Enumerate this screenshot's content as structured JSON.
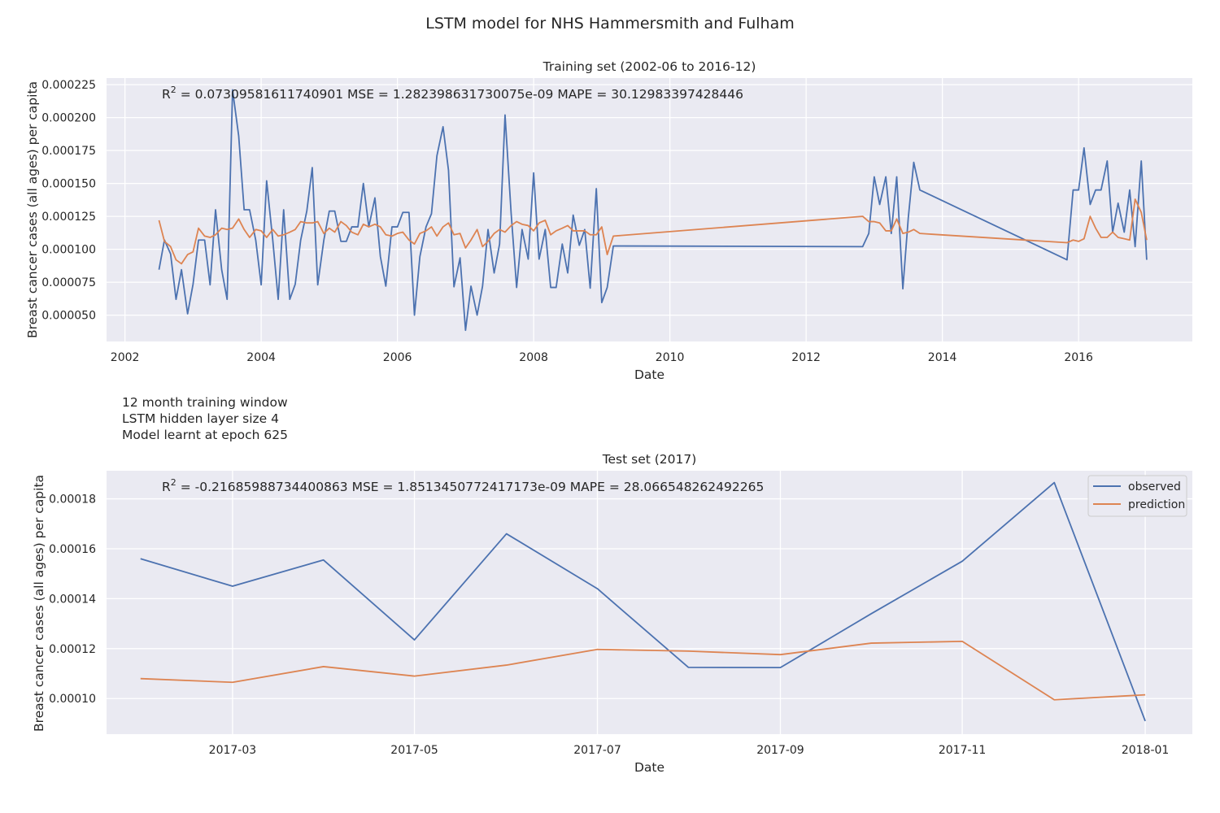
{
  "chart_data": {
    "type": "line",
    "suptitle": "LSTM model for NHS Hammersmith and Fulham",
    "notes": [
      "12 month training window",
      "LSTM hidden layer size 4",
      "Model learnt at epoch 625"
    ],
    "colors": {
      "observed": "#4c72b0",
      "prediction": "#dd8452",
      "background": "#eaeaf2",
      "grid": "#ffffff"
    },
    "panels": [
      {
        "title": "Training set (2002-06 to 2016-12)",
        "xlabel": "Date",
        "ylabel": "Breast cancer cases (all ages) per capita",
        "stats_prefix": "R",
        "stats_sup": "2",
        "stats_text": " = 0.07309581611740901  MSE = 1.282398631730075e-09  MAPE = 30.12983397428446",
        "xlim": [
          2001.73,
          2017.67
        ],
        "ylim": [
          3e-05,
          0.00023
        ],
        "xticks": [
          2002,
          2004,
          2006,
          2008,
          2010,
          2012,
          2014,
          2016
        ],
        "xtick_labels": [
          "2002",
          "2004",
          "2006",
          "2008",
          "2010",
          "2012",
          "2014",
          "2016"
        ],
        "yticks": [
          5e-05,
          7.5e-05,
          0.0001,
          0.000125,
          0.00015,
          0.000175,
          0.0002,
          0.000225
        ],
        "ytick_labels": [
          "0.000050",
          "0.000075",
          "0.000100",
          "0.000125",
          "0.000150",
          "0.000175",
          "0.000200",
          "0.000225"
        ],
        "legend": null,
        "series": [
          {
            "name": "observed",
            "x": [
              2002.5,
              2002.58,
              2002.67,
              2002.75,
              2002.83,
              2002.92,
              2003.0,
              2003.08,
              2003.17,
              2003.25,
              2003.33,
              2003.42,
              2003.5,
              2003.58,
              2003.67,
              2003.75,
              2003.83,
              2003.92,
              2004.0,
              2004.08,
              2004.17,
              2004.25,
              2004.33,
              2004.42,
              2004.5,
              2004.58,
              2004.67,
              2004.75,
              2004.83,
              2004.92,
              2005.0,
              2005.08,
              2005.17,
              2005.25,
              2005.33,
              2005.42,
              2005.5,
              2005.58,
              2005.67,
              2005.75,
              2005.83,
              2005.92,
              2006.0,
              2006.08,
              2006.17,
              2006.25,
              2006.33,
              2006.42,
              2006.5,
              2006.58,
              2006.67,
              2006.75,
              2006.83,
              2006.92,
              2007.0,
              2007.08,
              2007.17,
              2007.25,
              2007.33,
              2007.42,
              2007.5,
              2007.58,
              2007.67,
              2007.75,
              2007.83,
              2007.92,
              2008.0,
              2008.08,
              2008.17,
              2008.25,
              2008.33,
              2008.42,
              2008.5,
              2008.58,
              2008.67,
              2008.75,
              2008.83,
              2008.92,
              2009.0,
              2009.08,
              2009.17,
              2012.83,
              2012.92,
              2013.0,
              2013.08,
              2013.17,
              2013.25,
              2013.33,
              2013.42,
              2013.5,
              2013.58,
              2013.67,
              2015.83,
              2015.92,
              2016.0,
              2016.08,
              2016.17,
              2016.25,
              2016.33,
              2016.42,
              2016.5,
              2016.58,
              2016.67,
              2016.75,
              2016.83,
              2016.92,
              2017.0
            ],
            "y": [
              8.45e-05,
              0.000107,
              9.65e-05,
              6.2e-05,
              8.45e-05,
              5.1e-05,
              7.35e-05,
              0.000107,
              0.000107,
              7.3e-05,
              0.00013,
              8.45e-05,
              6.2e-05,
              0.000221,
              0.000186,
              0.00013,
              0.00013,
              0.000107,
              7.3e-05,
              0.000152,
              0.000107,
              6.2e-05,
              0.00013,
              6.2e-05,
              7.35e-05,
              0.000107,
              0.000129,
              0.000162,
              7.3e-05,
              0.000107,
              0.000129,
              0.000129,
              0.000106,
              0.000106,
              0.000117,
              0.000117,
              0.00015,
              0.000117,
              0.000139,
              9.45e-05,
              7.2e-05,
              0.000117,
              0.000117,
              0.000128,
              0.000128,
              5e-05,
              9.45e-05,
              0.000117,
              0.000127,
              0.000171,
              0.000193,
              0.00016,
              7.15e-05,
              9.35e-05,
              3.85e-05,
              7.2e-05,
              5e-05,
              7.2e-05,
              0.000115,
              8.2e-05,
              0.000104,
              0.000202,
              0.000127,
              7.1e-05,
              0.000115,
              9.25e-05,
              0.000158,
              9.25e-05,
              0.000115,
              7.1e-05,
              7.1e-05,
              0.000104,
              8.2e-05,
              0.000126,
              0.000103,
              0.000115,
              7.05e-05,
              0.000146,
              5.95e-05,
              7.1e-05,
              0.0001025,
              0.000102,
              0.000112,
              0.000155,
              0.000134,
              0.000155,
              0.000112,
              0.000155,
              7e-05,
              0.000124,
              0.000166,
              0.000145,
              9.2e-05,
              0.000145,
              0.000145,
              0.000177,
              0.000134,
              0.000145,
              0.000145,
              0.000167,
              0.000113,
              0.000135,
              0.000113,
              0.000145,
              0.000102,
              0.000167,
              9.2e-05
            ]
          },
          {
            "name": "prediction",
            "x": [
              2002.5,
              2002.58,
              2002.67,
              2002.75,
              2002.83,
              2002.92,
              2003.0,
              2003.08,
              2003.17,
              2003.25,
              2003.33,
              2003.42,
              2003.5,
              2003.58,
              2003.67,
              2003.75,
              2003.83,
              2003.92,
              2004.0,
              2004.08,
              2004.17,
              2004.25,
              2004.33,
              2004.42,
              2004.5,
              2004.58,
              2004.67,
              2004.75,
              2004.83,
              2004.92,
              2005.0,
              2005.08,
              2005.17,
              2005.25,
              2005.33,
              2005.42,
              2005.5,
              2005.58,
              2005.67,
              2005.75,
              2005.83,
              2005.92,
              2006.0,
              2006.08,
              2006.17,
              2006.25,
              2006.33,
              2006.42,
              2006.5,
              2006.58,
              2006.67,
              2006.75,
              2006.83,
              2006.92,
              2007.0,
              2007.08,
              2007.17,
              2007.25,
              2007.33,
              2007.42,
              2007.5,
              2007.58,
              2007.67,
              2007.75,
              2007.83,
              2007.92,
              2008.0,
              2008.08,
              2008.17,
              2008.25,
              2008.33,
              2008.42,
              2008.5,
              2008.58,
              2008.67,
              2008.75,
              2008.83,
              2008.92,
              2009.0,
              2009.08,
              2009.17,
              2012.83,
              2012.92,
              2013.0,
              2013.08,
              2013.17,
              2013.25,
              2013.33,
              2013.42,
              2013.5,
              2013.58,
              2013.67,
              2015.83,
              2015.92,
              2016.0,
              2016.08,
              2016.17,
              2016.25,
              2016.33,
              2016.42,
              2016.5,
              2016.58,
              2016.67,
              2016.75,
              2016.83,
              2016.92,
              2017.0
            ],
            "y": [
              0.000122,
              0.000106,
              0.000102,
              9.2e-05,
              8.9e-05,
              9.6e-05,
              9.8e-05,
              0.000116,
              0.00011,
              0.000109,
              0.000111,
              0.000116,
              0.000115,
              0.000116,
              0.000123,
              0.000115,
              0.000109,
              0.000115,
              0.000114,
              0.000109,
              0.000115,
              0.00011,
              0.000111,
              0.000113,
              0.000115,
              0.000121,
              0.00012,
              0.00012,
              0.000121,
              0.000112,
              0.000116,
              0.000113,
              0.000121,
              0.000118,
              0.000113,
              0.000111,
              0.000119,
              0.000117,
              0.000119,
              0.000117,
              0.000111,
              0.00011,
              0.000112,
              0.000113,
              0.000107,
              0.000104,
              0.000112,
              0.000114,
              0.000117,
              0.00011,
              0.000117,
              0.00012,
              0.000111,
              0.000112,
              0.000101,
              0.000107,
              0.000115,
              0.000102,
              0.000106,
              0.000112,
              0.000115,
              0.000113,
              0.000118,
              0.000121,
              0.000119,
              0.000118,
              0.000114,
              0.00012,
              0.000122,
              0.000111,
              0.000114,
              0.000116,
              0.000118,
              0.000114,
              0.000114,
              0.000114,
              0.000111,
              0.000111,
              0.000117,
              9.6e-05,
              0.00011,
              0.000125,
              0.000121,
              0.000121,
              0.00012,
              0.000114,
              0.000114,
              0.000123,
              0.000112,
              0.000113,
              0.000115,
              0.000112,
              0.000105,
              0.000107,
              0.000106,
              0.000108,
              0.000125,
              0.000116,
              0.000109,
              0.000109,
              0.000113,
              0.000109,
              0.000108,
              0.000107,
              0.000138,
              0.000128,
              0.000107
            ]
          }
        ]
      },
      {
        "title": "Test set (2017)",
        "xlabel": "Date",
        "ylabel": "Breast cancer cases (all ages) per capita",
        "stats_prefix": "R",
        "stats_sup": "2",
        "stats_text": " = -0.21685988734400863  MSE = 1.8513450772417173e-09  MAPE = 28.066548262492265",
        "xlim": [
          2017.052,
          2018.043
        ],
        "ylim": [
          8.575e-05,
          0.00019125
        ],
        "xticks": [
          2017.167,
          2017.333,
          2017.5,
          2017.667,
          2017.833,
          2018.0
        ],
        "xtick_labels": [
          "2017-03",
          "2017-05",
          "2017-07",
          "2017-09",
          "2017-11",
          "2018-01"
        ],
        "yticks": [
          0.0001,
          0.00012,
          0.00014,
          0.00016,
          0.00018
        ],
        "ytick_labels": [
          "0.00010",
          "0.00012",
          "0.00014",
          "0.00016",
          "0.00018"
        ],
        "legend": {
          "location": "upper right",
          "entries": [
            "observed",
            "prediction"
          ]
        },
        "series": [
          {
            "name": "observed",
            "x": [
              2017.083,
              2017.167,
              2017.25,
              2017.333,
              2017.417,
              2017.5,
              2017.583,
              2017.667,
              2017.75,
              2017.833,
              2017.917,
              2018.0
            ],
            "y": [
              0.000156,
              0.000145,
              0.0001555,
              0.0001235,
              0.000166,
              0.000144,
              0.0001125,
              0.0001124,
              0.000134,
              0.000155,
              0.0001865,
              9.1e-05
            ]
          },
          {
            "name": "prediction",
            "x": [
              2017.083,
              2017.167,
              2017.25,
              2017.333,
              2017.417,
              2017.5,
              2017.583,
              2017.667,
              2017.75,
              2017.833,
              2017.917,
              2018.0
            ],
            "y": [
              0.000108,
              0.0001065,
              0.0001128,
              0.000109,
              0.0001134,
              0.0001197,
              0.000119,
              0.0001176,
              0.0001222,
              0.0001229,
              9.95e-05,
              0.0001015
            ]
          }
        ]
      }
    ]
  }
}
